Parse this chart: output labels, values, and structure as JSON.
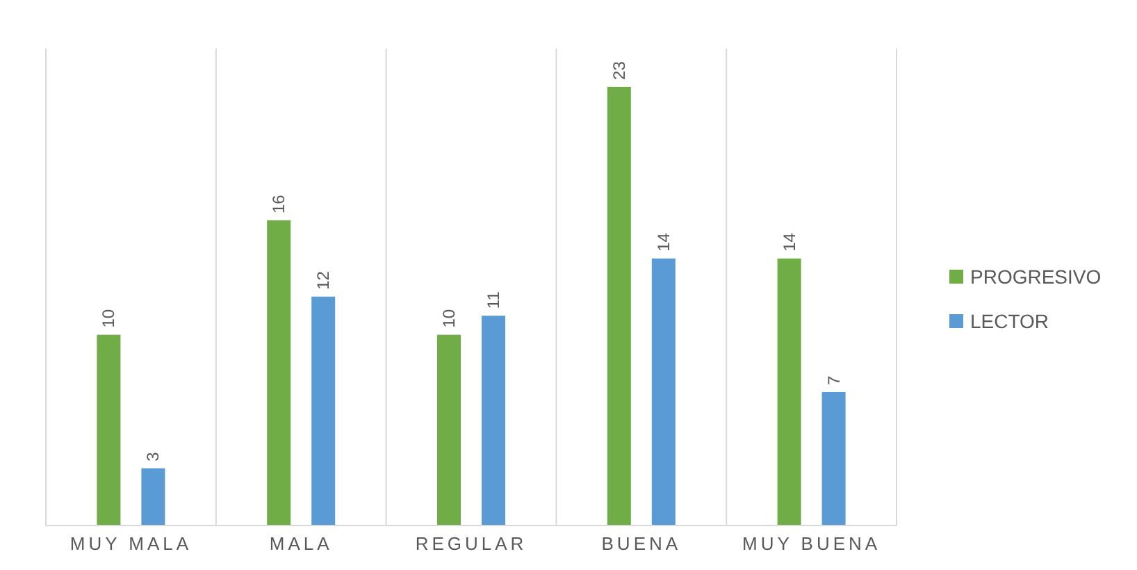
{
  "chart_data": {
    "type": "bar",
    "categories": [
      "MUY MALA",
      "MALA",
      "REGULAR",
      "BUENA",
      "MUY BUENA"
    ],
    "series": [
      {
        "name": "PROGRESIVO",
        "color": "#70ad47",
        "values": [
          10,
          16,
          10,
          23,
          14
        ]
      },
      {
        "name": "LECTOR",
        "color": "#5b9bd5",
        "values": [
          3,
          12,
          11,
          14,
          7
        ]
      }
    ],
    "data_labels": true,
    "grid": "x",
    "legend": "right"
  }
}
